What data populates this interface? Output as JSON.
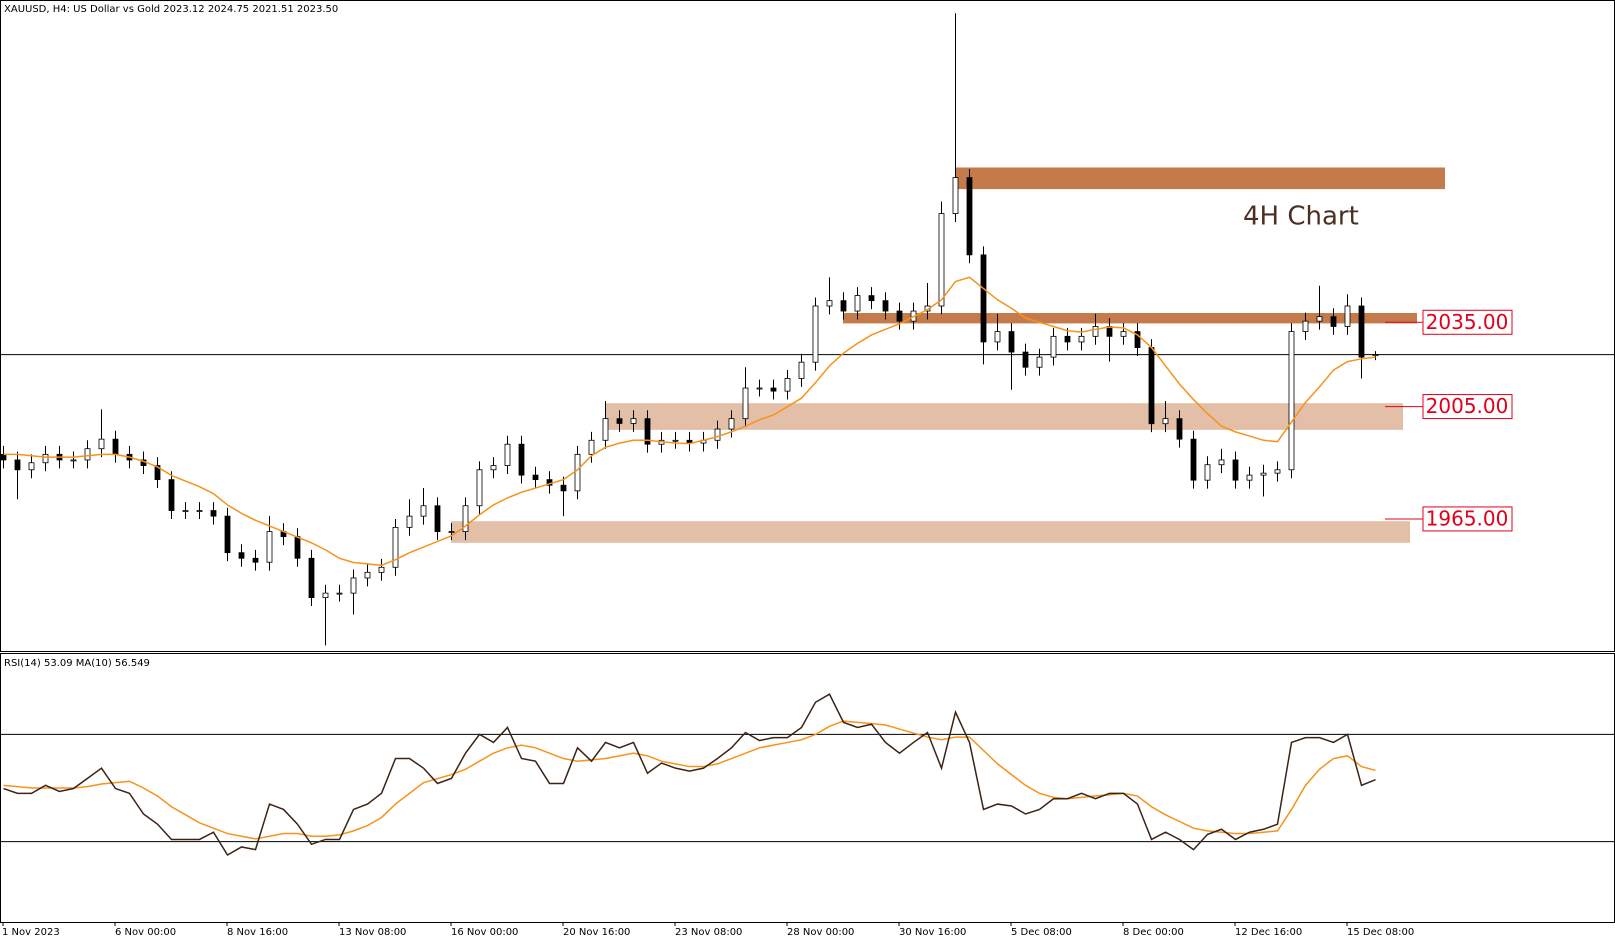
{
  "chart_data": {
    "type": "candlestick",
    "title": "XAUUSD, H4:  US Dollar vs Gold  2023.12 2024.75 2021.51 2023.50",
    "annotation": "4H Chart",
    "categories": [
      "1 Nov 2023",
      null,
      null,
      null,
      null,
      null,
      null,
      null,
      "6 Nov 00:00",
      null,
      null,
      null,
      null,
      null,
      null,
      null,
      "8 Nov 16:00",
      null,
      null,
      null,
      null,
      null,
      null,
      null,
      "13 Nov 08:00",
      null,
      null,
      null,
      null,
      null,
      null,
      null,
      "16 Nov 00:00",
      null,
      null,
      null,
      null,
      null,
      null,
      null,
      "20 Nov 16:00",
      null,
      null,
      null,
      null,
      null,
      null,
      null,
      "23 Nov 08:00",
      null,
      null,
      null,
      null,
      null,
      null,
      null,
      "28 Nov 00:00",
      null,
      null,
      null,
      null,
      null,
      null,
      null,
      "30 Nov 16:00",
      null,
      null,
      null,
      null,
      null,
      null,
      null,
      "5 Dec 08:00",
      null,
      null,
      null,
      null,
      null,
      null,
      null,
      "8 Dec 00:00",
      null,
      null,
      null,
      null,
      null,
      null,
      null,
      "12 Dec 16:00",
      null,
      null,
      null,
      null,
      null,
      null,
      null,
      "15 Dec 08:00",
      null,
      null
    ],
    "open": [
      1988,
      1986,
      1982.5,
      1985,
      1988,
      1986,
      1986,
      1990,
      1993.4,
      1988,
      1986,
      1984,
      1979,
      1968,
      1968,
      1968,
      1966,
      1953,
      1951,
      1949.6,
      1960.5,
      1958.7,
      1951,
      1937,
      1938.6,
      1938.6,
      1944,
      1946,
      1947.8,
      1962,
      1966,
      1969.7,
      1960.5,
      1960.5,
      1969.7,
      1982.5,
      1984,
      1991.6,
      1980.6,
      1979,
      1977,
      1975,
      1988,
      1993,
      2000.7,
      1999,
      2000.7,
      1991.6,
      1993,
      1993,
      1992,
      1993,
      1997,
      2000.7,
      2011.6,
      2011.6,
      2010.5,
      2015,
      2020.8,
      2040.8,
      2042.7,
      2039,
      2044.5,
      2042.7,
      2039,
      2035.4,
      2039,
      2040.8,
      2073.7,
      2086.5,
      2059,
      2028,
      2031.7,
      2024.4,
      2019,
      2022.6,
      2030,
      2028,
      2030,
      2033.5,
      2030,
      2031.7,
      2026,
      1998.9,
      2000.7,
      1993.4,
      1978.8,
      1984.3,
      1986,
      1978.8,
      1980.6,
      1981.3,
      1982.5,
      2031.7,
      2035.4,
      2037,
      2033.5,
      2040.8,
      2023.12
    ],
    "high": [
      1991,
      1989,
      1988,
      1991,
      1991,
      1989,
      1993,
      2004,
      1996.4,
      1991,
      1989,
      1987,
      1982,
      1971,
      1971,
      1971,
      1969,
      1956,
      1954,
      1966,
      1963.5,
      1961.7,
      1954,
      1941.6,
      1941.6,
      1947,
      1949,
      1950.8,
      1965,
      1972,
      1976,
      1972.7,
      1963.5,
      1972.7,
      1985.5,
      1987,
      1994.6,
      1994.6,
      1983.6,
      1982,
      1980,
      1991,
      1996,
      2007,
      2003.7,
      2003.7,
      2003.7,
      1996,
      1996,
      1996,
      1996,
      2000,
      2003.7,
      2019,
      2014.6,
      2014.6,
      2018,
      2023.8,
      2043.8,
      2051,
      2045.7,
      2047.5,
      2047.5,
      2045.7,
      2042,
      2042,
      2049,
      2078,
      2145,
      2089.5,
      2062,
      2038,
      2034.7,
      2027.4,
      2025.6,
      2033,
      2033,
      2033,
      2038,
      2036.5,
      2034.7,
      2034.7,
      2029,
      2007,
      2003.7,
      1996.4,
      1987.3,
      1990,
      1989,
      1983.6,
      1984.3,
      1985.5,
      2034.7,
      2038.4,
      2048,
      2040,
      2045,
      2043.8,
      2024.75
    ],
    "low": [
      1983,
      1972,
      1979.5,
      1982,
      1983,
      1983,
      1983,
      1987,
      1985,
      1983,
      1981,
      1976,
      1965,
      1965,
      1965,
      1963,
      1950,
      1948,
      1946.6,
      1946.6,
      1955.7,
      1948,
      1934,
      1920,
      1935.6,
      1931,
      1941,
      1943,
      1944.8,
      1959,
      1963,
      1957.5,
      1957.5,
      1957.5,
      1966.7,
      1979.5,
      1981,
      1977.6,
      1976,
      1974,
      1966,
      1972,
      1985,
      1990,
      1996,
      1996,
      1988.6,
      1988.6,
      1990,
      1989,
      1989,
      1990,
      1994,
      1997.7,
      2008.6,
      2007.5,
      2007.5,
      2012,
      2017.8,
      2037.8,
      2036,
      2036,
      2039.7,
      2036,
      2032.4,
      2032.4,
      2036,
      2037.8,
      2070.7,
      2056,
      2020,
      2025,
      2011,
      2016,
      2016,
      2019.6,
      2025,
      2025,
      2027,
      2021,
      2027,
      2023,
      1995.9,
      1995.9,
      1990.4,
      1975.8,
      1975.8,
      1981.3,
      1975.8,
      1975.8,
      1973,
      1978.3,
      1979.5,
      2028.7,
      2032.4,
      2030.5,
      2030.5,
      2015,
      2021.51
    ],
    "close": [
      1986,
      1982.5,
      1985,
      1988,
      1986,
      1986,
      1990,
      1993.4,
      1988,
      1986,
      1984,
      1979,
      1968,
      1968,
      1968,
      1966,
      1953,
      1951,
      1949.6,
      1960.5,
      1958.7,
      1951,
      1937,
      1938.6,
      1938.6,
      1944,
      1946,
      1947.8,
      1962,
      1966,
      1969.7,
      1960.5,
      1960.5,
      1969.7,
      1982.5,
      1984,
      1991.6,
      1980.6,
      1979,
      1977,
      1975,
      1988,
      1993,
      2000.7,
      1999,
      2000.7,
      1991.6,
      1993,
      1993,
      1992,
      1993,
      1997,
      2000.7,
      2011.6,
      2011.6,
      2010.5,
      2015,
      2020.8,
      2040.8,
      2042.7,
      2039,
      2044.5,
      2042.7,
      2039,
      2035.4,
      2039,
      2040.8,
      2073.7,
      2086.5,
      2059,
      2028,
      2031.7,
      2024.4,
      2019,
      2022.6,
      2030,
      2028,
      2030,
      2033.5,
      2030,
      2031.7,
      2026,
      1998.9,
      2000.7,
      1993.4,
      1978.8,
      1984.3,
      1986,
      1978.8,
      1980.6,
      1981.3,
      1982.5,
      2031.7,
      2035.4,
      2037,
      2033.5,
      2040.8,
      2022.6,
      2023.5
    ],
    "ylim": [
      1918,
      2149
    ],
    "ma": {
      "color": "#f7931a",
      "values": [
        1988,
        1988,
        1987.5,
        1987,
        1987,
        1987,
        1987.5,
        1988,
        1988,
        1987,
        1985.5,
        1983.5,
        1980.5,
        1978.5,
        1976.5,
        1974,
        1970,
        1967,
        1964.5,
        1962.5,
        1960.5,
        1958.5,
        1956.5,
        1954,
        1951,
        1949.5,
        1949,
        1948.5,
        1950.5,
        1953,
        1955,
        1957,
        1959,
        1962.5,
        1966.5,
        1970,
        1972.5,
        1974.5,
        1976,
        1977.5,
        1979,
        1982.5,
        1987.5,
        1990.5,
        1992,
        1993,
        1993,
        1992.5,
        1992,
        1991.8,
        1993,
        1994.3,
        1996,
        1998,
        2000.3,
        2002,
        2005,
        2008,
        2013.5,
        2019.5,
        2024,
        2027.5,
        2030.5,
        2032.5,
        2034.5,
        2037,
        2039.5,
        2043,
        2049.5,
        2051,
        2047,
        2043,
        2040,
        2036.5,
        2035,
        2033.5,
        2032,
        2031.5,
        2032.5,
        2033.3,
        2033,
        2030.5,
        2026,
        2019.5,
        2013,
        2007.5,
        2002.5,
        1998,
        1996,
        1994.5,
        1993,
        1992.5,
        1999.5,
        2006.5,
        2012,
        2018,
        2021,
        2022,
        2022.6
      ]
    },
    "zones": [
      {
        "x_start": 68,
        "x_end": 103,
        "top": 2090.1,
        "bottom": 2082.4,
        "color": "#c47a4b"
      },
      {
        "x_start": 60,
        "x_end": 101,
        "top": 2038.3,
        "bottom": 2034.6,
        "color": "#c47a4b"
      },
      {
        "x_start": 43,
        "x_end": 100,
        "top": 2006.2,
        "bottom": 1996.7,
        "color": "#e2bfa6"
      },
      {
        "x_start": 32,
        "x_end": 100.5,
        "top": 1964.2,
        "bottom": 1956.5,
        "color": "#e2bfa6"
      }
    ],
    "levels": [
      {
        "value": 2035,
        "label": "2035.00"
      },
      {
        "value": 2005,
        "label": "2005.00"
      },
      {
        "value": 1965,
        "label": "1965.00"
      }
    ],
    "level_color": "#e0001b",
    "rsi": {
      "title": "RSI(14) 53.09 MA(10) 56.549",
      "color": "#3b2316",
      "ma_color": "#f7931a",
      "ylim": [
        0,
        100
      ],
      "levels": [
        70,
        30
      ],
      "values": [
        49.8,
        48,
        48,
        51,
        48.7,
        49.8,
        53.6,
        57.4,
        49.8,
        48,
        40.3,
        36.5,
        30.8,
        30.8,
        30.8,
        33.5,
        25,
        28,
        27,
        44,
        42,
        36.5,
        29,
        30.8,
        30.8,
        42,
        44,
        48,
        61,
        61,
        57.4,
        51.7,
        53.6,
        63,
        70,
        67,
        72.6,
        61,
        60,
        51.7,
        51.7,
        65,
        60,
        67,
        65,
        67,
        55.5,
        59.3,
        57.4,
        56.3,
        57.4,
        61,
        65,
        70.7,
        67.7,
        68.8,
        68.8,
        72.6,
        82,
        85,
        74.5,
        72.6,
        73.8,
        67,
        63,
        67,
        70.7,
        57.4,
        78.3,
        67,
        42,
        44,
        43.3,
        40.3,
        42,
        46,
        46,
        48,
        46,
        48,
        48,
        44,
        30.8,
        33.5,
        30.8,
        27,
        32.7,
        34.6,
        30.8,
        33.5,
        34.6,
        36.5,
        67,
        68.8,
        68.8,
        67,
        70,
        51,
        53.09
      ],
      "ma_values": [
        51,
        50.5,
        50,
        50,
        50,
        50,
        50.5,
        51.5,
        52,
        52.5,
        50,
        47,
        43,
        40,
        37,
        35,
        33,
        32,
        31,
        32,
        33,
        33,
        32,
        32,
        32.5,
        34,
        36,
        39,
        44,
        48,
        52,
        53.5,
        55,
        57,
        60,
        63,
        65,
        66,
        65,
        63,
        61,
        60,
        60.5,
        61,
        62,
        63,
        62,
        60,
        59,
        58,
        58,
        59,
        61,
        63,
        65,
        66,
        67,
        68,
        70,
        73,
        75,
        74.5,
        74,
        73.5,
        72,
        70.5,
        69,
        68,
        69,
        69,
        64,
        59,
        55,
        51,
        48,
        46.5,
        46,
        46.5,
        47,
        47.5,
        48,
        47,
        43,
        40,
        37.5,
        35,
        34,
        33.5,
        33,
        33,
        33.5,
        34,
        42,
        51,
        57,
        61,
        62,
        58,
        56.549
      ]
    }
  }
}
